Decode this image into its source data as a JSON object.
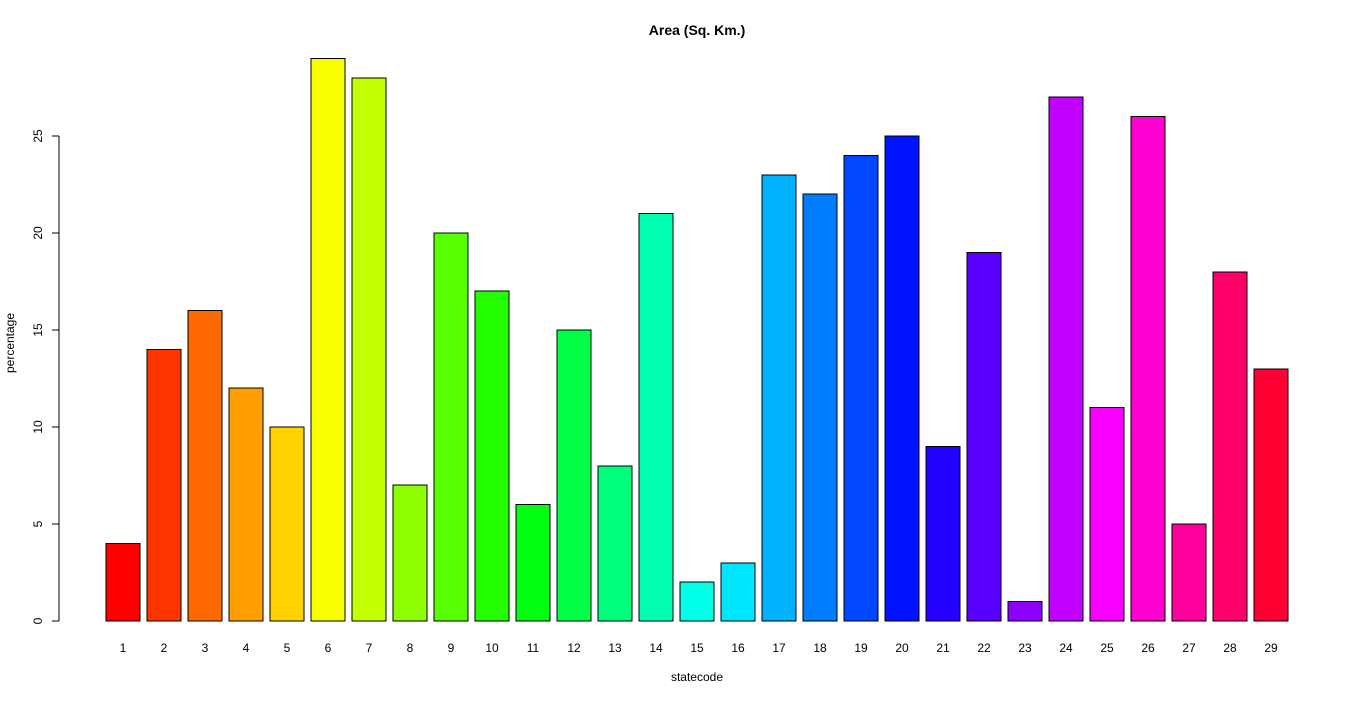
{
  "chart_data": {
    "type": "bar",
    "title": "Area (Sq. Km.)",
    "xlabel": "statecode",
    "ylabel": "percentage",
    "categories": [
      "1",
      "2",
      "3",
      "4",
      "5",
      "6",
      "7",
      "8",
      "9",
      "10",
      "11",
      "12",
      "13",
      "14",
      "15",
      "16",
      "17",
      "18",
      "19",
      "20",
      "21",
      "22",
      "23",
      "24",
      "25",
      "26",
      "27",
      "28",
      "29"
    ],
    "values": [
      4,
      14,
      16,
      12,
      10,
      29,
      28,
      7,
      20,
      17,
      6,
      15,
      8,
      21,
      2,
      3,
      23,
      22,
      24,
      25,
      9,
      19,
      1,
      27,
      11,
      26,
      5,
      18,
      13
    ],
    "colors": [
      "#FF0000",
      "#FF3500",
      "#FF6A00",
      "#FF9E00",
      "#FFD300",
      "#F7FF00",
      "#C2FF00",
      "#8DFF00",
      "#58FF00",
      "#23FF00",
      "#00FF12",
      "#00FF47",
      "#00FF7C",
      "#00FFB1",
      "#00FFE6",
      "#00E6FF",
      "#00B1FF",
      "#007CFF",
      "#0047FF",
      "#0012FF",
      "#2300FF",
      "#5800FF",
      "#8D00FF",
      "#C200FF",
      "#F700FF",
      "#FF00D3",
      "#FF009E",
      "#FF006A",
      "#FF0035"
    ],
    "ylim": [
      0,
      29
    ],
    "yticks": [
      0,
      5,
      10,
      15,
      20,
      25
    ],
    "grid": false,
    "legend": "none"
  }
}
